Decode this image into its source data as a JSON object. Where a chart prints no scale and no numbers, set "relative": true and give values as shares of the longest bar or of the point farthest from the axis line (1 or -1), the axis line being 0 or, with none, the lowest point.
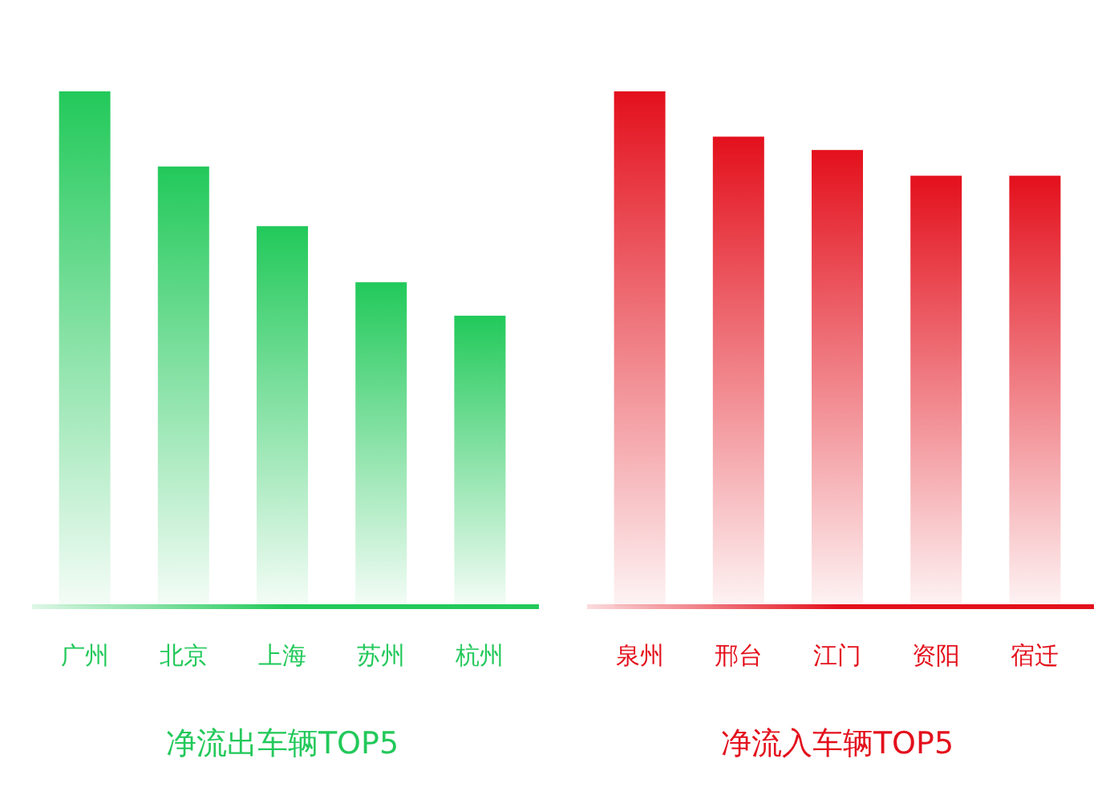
{
  "chart_data": [
    {
      "type": "bar",
      "title": "净流出车辆TOP5",
      "categories": [
        "广州",
        "北京",
        "上海",
        "苏州",
        "杭州"
      ],
      "values": [
        1,
        0.854,
        0.738,
        0.629,
        0.564
      ],
      "relative": true,
      "color": "#22c95a"
    },
    {
      "type": "bar",
      "title": "净流入车辆TOP5",
      "categories": [
        "泉州",
        "邢台",
        "江门",
        "资阳",
        "宿迁"
      ],
      "values": [
        1,
        0.912,
        0.886,
        0.836,
        0.836
      ],
      "relative": true,
      "color": "#e3101c"
    }
  ]
}
